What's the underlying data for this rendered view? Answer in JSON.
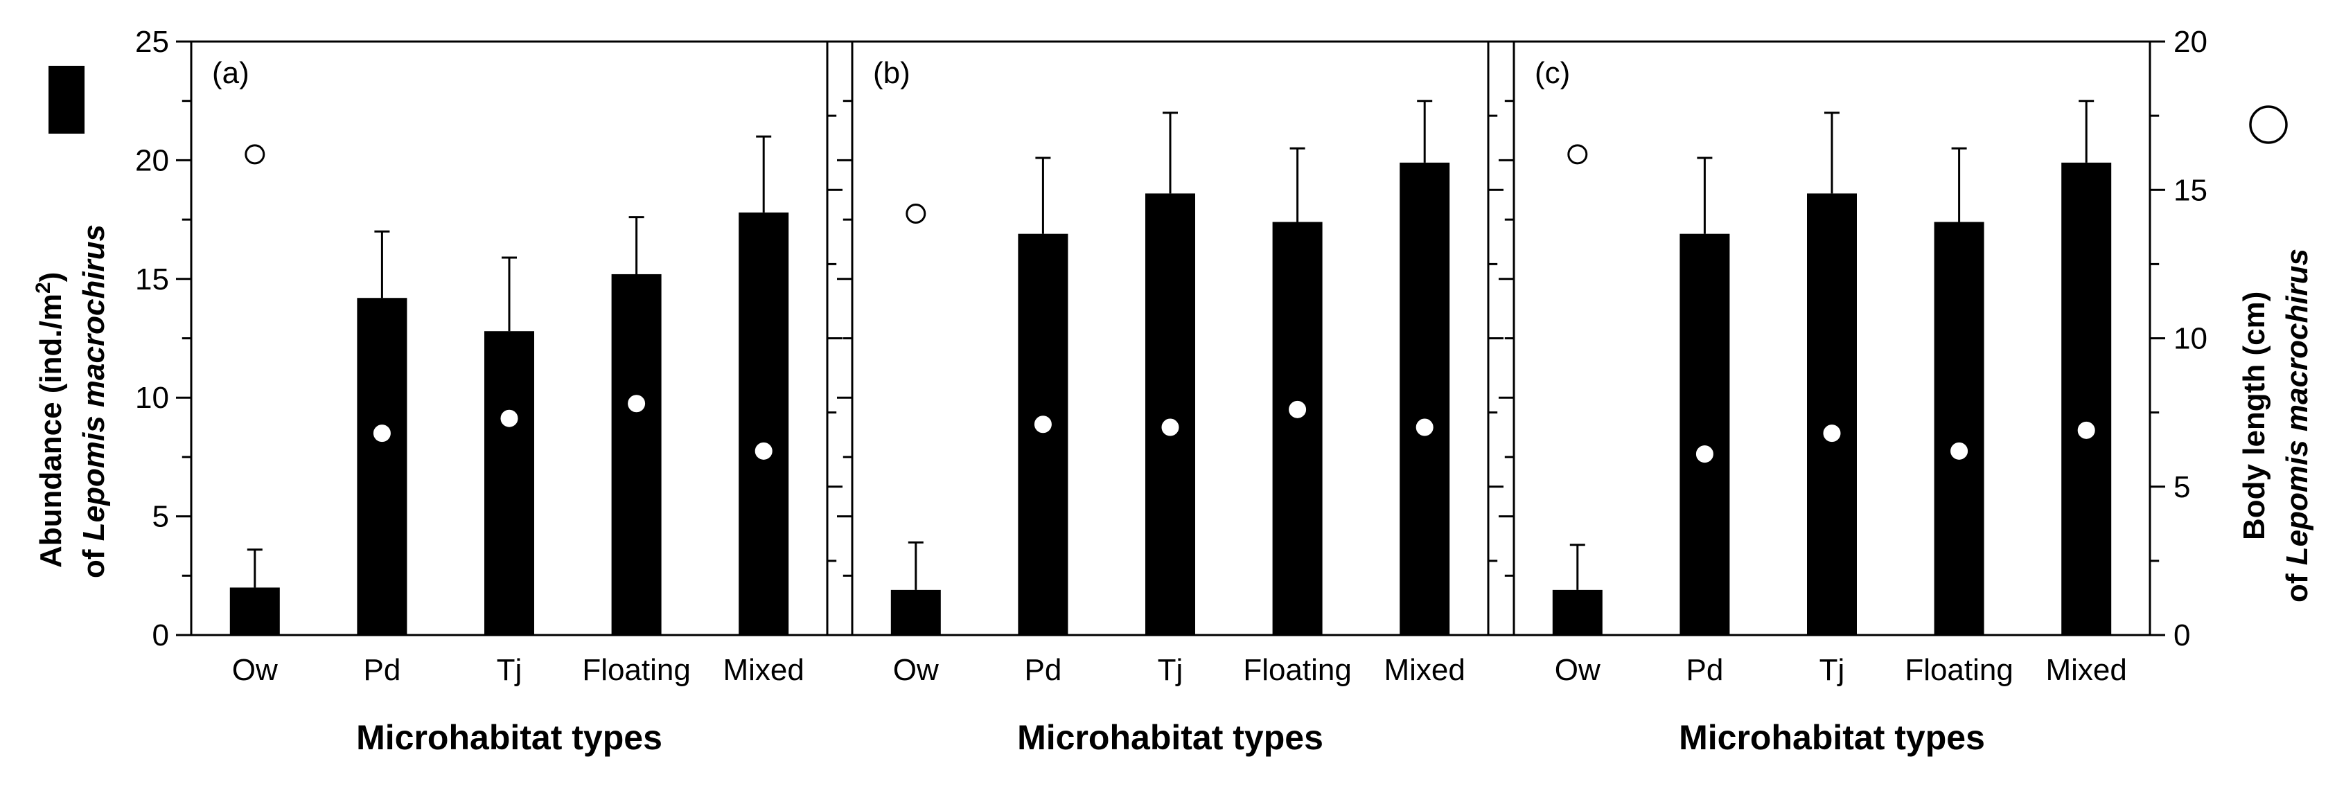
{
  "colors": {
    "bar": "#000000",
    "axis": "#000000",
    "background": "#ffffff",
    "open_marker_fill": "#ffffff"
  },
  "legend": {
    "bar_icon": "filled-black-rectangle",
    "circle_icon": "open-circle"
  },
  "y_axis_left": {
    "label_line1": "Abundance (ind./m",
    "label_line1_sup": "2",
    "label_line1_end": ")",
    "label_line2_prefix": "of ",
    "label_line2_italic": "Lepomis macrochirus",
    "ticks": [
      "0",
      "5",
      "10",
      "15",
      "20",
      "25"
    ]
  },
  "y_axis_right": {
    "label_line1": "Body length (cm)",
    "label_line2_prefix": "of ",
    "label_line2_italic": "Lepomis macrochirus",
    "ticks": [
      "0",
      "5",
      "10",
      "15",
      "20"
    ]
  },
  "chart_data": [
    {
      "type": "bar",
      "panel_label": "(a)",
      "categories": [
        "Ow",
        "Pd",
        "Tj",
        "Floating",
        "Mixed"
      ],
      "xlabel": "Microhabitat types",
      "ylim": [
        0,
        25
      ],
      "y2lim": [
        0,
        20
      ],
      "series": [
        {
          "values": [
            2.0,
            14.2,
            12.8,
            15.2,
            17.8
          ],
          "error_up": [
            1.6,
            2.8,
            3.1,
            2.4,
            3.2
          ]
        },
        {
          "values": [
            16.2,
            6.8,
            7.3,
            7.8,
            6.2
          ],
          "axis": "right",
          "marker": "circle",
          "open_index": [
            0
          ]
        }
      ]
    },
    {
      "type": "bar",
      "panel_label": "(b)",
      "categories": [
        "Ow",
        "Pd",
        "Tj",
        "Floating",
        "Mixed"
      ],
      "xlabel": "Microhabitat types",
      "ylim": [
        0,
        25
      ],
      "y2lim": [
        0,
        20
      ],
      "series": [
        {
          "values": [
            1.9,
            16.9,
            18.6,
            17.4,
            19.9
          ],
          "error_up": [
            2.0,
            3.2,
            3.4,
            3.1,
            2.6
          ]
        },
        {
          "values": [
            14.2,
            7.1,
            7.0,
            7.6,
            7.0
          ],
          "axis": "right",
          "marker": "circle",
          "open_index": [
            0
          ]
        }
      ]
    },
    {
      "type": "bar",
      "panel_label": "(c)",
      "categories": [
        "Ow",
        "Pd",
        "Tj",
        "Floating",
        "Mixed"
      ],
      "xlabel": "Microhabitat types",
      "ylim": [
        0,
        25
      ],
      "y2lim": [
        0,
        20
      ],
      "series": [
        {
          "values": [
            1.9,
            16.9,
            18.6,
            17.4,
            19.9
          ],
          "error_up": [
            1.9,
            3.2,
            3.4,
            3.1,
            2.6
          ]
        },
        {
          "values": [
            16.2,
            6.1,
            6.8,
            6.2,
            6.9
          ],
          "axis": "right",
          "marker": "circle",
          "open_index": [
            0
          ]
        }
      ]
    }
  ]
}
